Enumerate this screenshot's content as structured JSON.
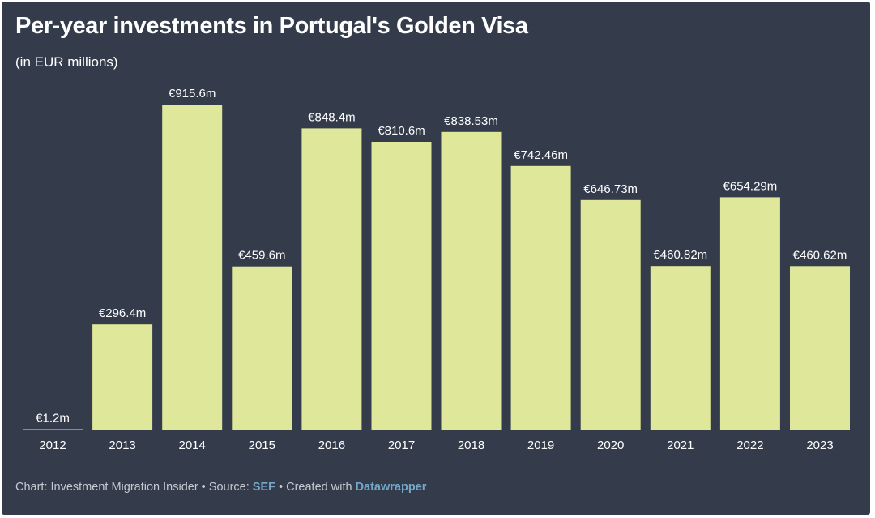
{
  "title": "Per-year investments in Portugal's Golden Visa",
  "subtitle": "(in EUR millions)",
  "footer": {
    "prefix": "Chart: Investment Migration Insider • Source: ",
    "source": "SEF",
    "middle": " • Created with ",
    "tool": "Datawrapper"
  },
  "colors": {
    "background": "#343c4b",
    "bar": "#dfe79a",
    "text": "#ffffff",
    "axis": "#9aa0aa",
    "link": "#74a8c9"
  },
  "chart_data": {
    "type": "bar",
    "title": "Per-year investments in Portugal's Golden Visa",
    "subtitle": "(in EUR millions)",
    "xlabel": "",
    "ylabel": "EUR millions",
    "ylim": [
      0,
      915.6
    ],
    "grid": false,
    "categories": [
      "2012",
      "2013",
      "2014",
      "2015",
      "2016",
      "2017",
      "2018",
      "2019",
      "2020",
      "2021",
      "2022",
      "2023"
    ],
    "values": [
      1.2,
      296.4,
      915.6,
      459.6,
      848.4,
      810.6,
      838.53,
      742.46,
      646.73,
      460.82,
      654.29,
      460.62
    ],
    "labels": [
      "€1.2m",
      "€296.4m",
      "€915.6m",
      "€459.6m",
      "€848.4m",
      "€810.6m",
      "€838.53m",
      "€742.46m",
      "€646.73m",
      "€460.82m",
      "€654.29m",
      "€460.62m"
    ]
  }
}
